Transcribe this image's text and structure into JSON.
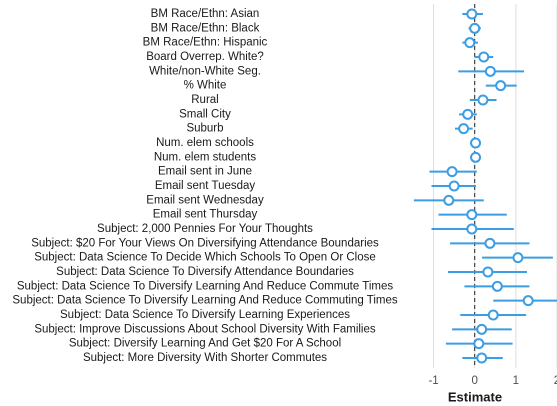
{
  "chart_data": {
    "type": "coefficient",
    "xlabel": "Estimate",
    "categories": [
      "BM Race/Ethn: Asian",
      "BM Race/Ethn: Black",
      "BM Race/Ethn: Hispanic",
      "Board Overrep. White?",
      "White/non-White Seg.",
      "% White",
      "Rural",
      "Small City",
      "Suburb",
      "Num. elem schools",
      "Num. elem students",
      "Email sent in June",
      "Email sent Tuesday",
      "Email sent Wednesday",
      "Email sent Thursday",
      "Subject: 2,000 Pennies For Your Thoughts",
      "Subject: $20 For Your Views On Diversifying Attendance Boundaries",
      "Subject: Data Science To Decide Which Schools To Open Or Close",
      "Subject: Data Science To Diversify Attendance Boundaries",
      "Subject: Data Science To Diversify Learning And Reduce Commute Times",
      "Subject: Data Science To Diversify Learning And Reduce Commuting Times",
      "Subject: Data Science To Diversify Learning Experiences",
      "Subject: Improve Discussions About School Diversity With Families",
      "Subject: Diversify Learning And Get $20 For A School",
      "Subject: More Diversity With Shorter Commutes"
    ],
    "values": [
      -0.07,
      0.0,
      -0.12,
      0.22,
      0.38,
      0.63,
      0.2,
      -0.17,
      -0.27,
      0.02,
      0.02,
      -0.55,
      -0.5,
      -0.63,
      -0.07,
      -0.07,
      0.37,
      1.05,
      0.32,
      0.55,
      1.3,
      0.45,
      0.17,
      0.1,
      0.17
    ],
    "lower": [
      -0.3,
      -0.15,
      -0.3,
      0.0,
      -0.4,
      0.27,
      -0.12,
      -0.38,
      -0.48,
      -0.03,
      -0.03,
      -1.1,
      -1.05,
      -1.48,
      -0.88,
      -1.05,
      -0.6,
      0.18,
      -0.65,
      -0.25,
      0.45,
      -0.35,
      -0.55,
      -0.7,
      -0.3
    ],
    "upper": [
      0.2,
      0.15,
      0.08,
      0.45,
      1.2,
      1.02,
      0.53,
      0.05,
      -0.05,
      0.07,
      0.07,
      0.05,
      0.03,
      0.22,
      0.78,
      0.95,
      1.33,
      1.9,
      1.27,
      1.33,
      2.15,
      1.25,
      0.9,
      0.92,
      0.68
    ],
    "color": "#3b9de3",
    "xlim": [
      -1.5,
      2
    ],
    "xticks": [
      -1,
      0,
      1,
      2
    ],
    "grid": true,
    "refline": 0
  }
}
